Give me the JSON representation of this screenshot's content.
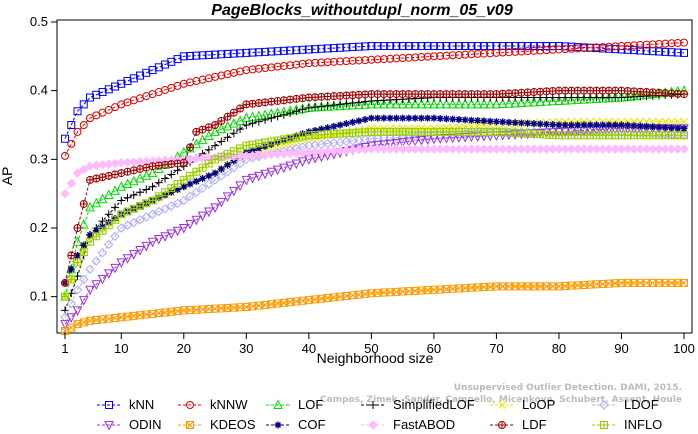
{
  "chart_data": {
    "type": "line",
    "title": "PageBlocks_withoutdupl_norm_05_v09",
    "xlabel": "Neighborhood size",
    "ylabel": "AP",
    "xlim": [
      1,
      100
    ],
    "ylim": [
      0.05,
      0.5
    ],
    "xticks": [
      1,
      10,
      20,
      30,
      40,
      50,
      60,
      70,
      80,
      90,
      100
    ],
    "yticks": [
      0.1,
      0.2,
      0.3,
      0.4,
      0.5
    ],
    "legend_position": "bottom",
    "watermark": [
      "Campos, Zimek, Sander, Campello, Micenkova, Schubert, Assent, Houle",
      "Unsupervised Outlier Detection. DAMI, 2015."
    ],
    "series": [
      {
        "name": "kNN",
        "color": "#0000ff",
        "marker": "square",
        "points": [
          [
            1,
            0.33
          ],
          [
            3,
            0.37
          ],
          [
            5,
            0.39
          ],
          [
            10,
            0.41
          ],
          [
            15,
            0.43
          ],
          [
            20,
            0.45
          ],
          [
            30,
            0.455
          ],
          [
            40,
            0.46
          ],
          [
            50,
            0.465
          ],
          [
            60,
            0.465
          ],
          [
            70,
            0.465
          ],
          [
            80,
            0.465
          ],
          [
            90,
            0.46
          ],
          [
            100,
            0.455
          ]
        ]
      },
      {
        "name": "kNNW",
        "color": "#e00000",
        "marker": "circle",
        "points": [
          [
            1,
            0.305
          ],
          [
            3,
            0.34
          ],
          [
            5,
            0.36
          ],
          [
            10,
            0.38
          ],
          [
            15,
            0.395
          ],
          [
            20,
            0.41
          ],
          [
            30,
            0.43
          ],
          [
            40,
            0.44
          ],
          [
            50,
            0.445
          ],
          [
            60,
            0.45
          ],
          [
            70,
            0.455
          ],
          [
            80,
            0.46
          ],
          [
            90,
            0.465
          ],
          [
            100,
            0.47
          ]
        ]
      },
      {
        "name": "LOF",
        "color": "#00dd00",
        "marker": "triangle",
        "points": [
          [
            1,
            0.1
          ],
          [
            3,
            0.18
          ],
          [
            5,
            0.23
          ],
          [
            10,
            0.26
          ],
          [
            15,
            0.28
          ],
          [
            20,
            0.31
          ],
          [
            25,
            0.34
          ],
          [
            30,
            0.36
          ],
          [
            40,
            0.375
          ],
          [
            50,
            0.38
          ],
          [
            60,
            0.38
          ],
          [
            70,
            0.38
          ],
          [
            80,
            0.385
          ],
          [
            90,
            0.39
          ],
          [
            100,
            0.4
          ]
        ]
      },
      {
        "name": "SimplifiedLOF",
        "color": "#000000",
        "marker": "plus",
        "points": [
          [
            1,
            0.08
          ],
          [
            3,
            0.13
          ],
          [
            5,
            0.19
          ],
          [
            10,
            0.24
          ],
          [
            15,
            0.26
          ],
          [
            20,
            0.29
          ],
          [
            25,
            0.32
          ],
          [
            30,
            0.35
          ],
          [
            40,
            0.375
          ],
          [
            50,
            0.385
          ],
          [
            60,
            0.39
          ],
          [
            70,
            0.39
          ],
          [
            80,
            0.39
          ],
          [
            90,
            0.39
          ],
          [
            100,
            0.395
          ]
        ]
      },
      {
        "name": "LoOP",
        "color": "#e8e800",
        "marker": "x",
        "points": [
          [
            1,
            0.1
          ],
          [
            3,
            0.15
          ],
          [
            5,
            0.19
          ],
          [
            10,
            0.22
          ],
          [
            15,
            0.24
          ],
          [
            20,
            0.26
          ],
          [
            25,
            0.28
          ],
          [
            30,
            0.31
          ],
          [
            40,
            0.33
          ],
          [
            50,
            0.345
          ],
          [
            60,
            0.345
          ],
          [
            70,
            0.35
          ],
          [
            80,
            0.355
          ],
          [
            90,
            0.355
          ],
          [
            100,
            0.355
          ]
        ]
      },
      {
        "name": "LDOF",
        "color": "#aaaaff",
        "marker": "diamond",
        "points": [
          [
            1,
            0.07
          ],
          [
            3,
            0.11
          ],
          [
            5,
            0.14
          ],
          [
            10,
            0.2
          ],
          [
            15,
            0.22
          ],
          [
            20,
            0.24
          ],
          [
            25,
            0.27
          ],
          [
            30,
            0.3
          ],
          [
            40,
            0.32
          ],
          [
            50,
            0.33
          ],
          [
            60,
            0.335
          ],
          [
            70,
            0.34
          ],
          [
            80,
            0.34
          ],
          [
            90,
            0.34
          ],
          [
            100,
            0.335
          ]
        ]
      },
      {
        "name": "ODIN",
        "color": "#9933dd",
        "marker": "triangle-down",
        "points": [
          [
            1,
            0.06
          ],
          [
            3,
            0.08
          ],
          [
            5,
            0.11
          ],
          [
            10,
            0.15
          ],
          [
            15,
            0.18
          ],
          [
            20,
            0.2
          ],
          [
            25,
            0.23
          ],
          [
            30,
            0.27
          ],
          [
            40,
            0.3
          ],
          [
            50,
            0.32
          ],
          [
            60,
            0.33
          ],
          [
            70,
            0.335
          ],
          [
            80,
            0.34
          ],
          [
            90,
            0.345
          ],
          [
            100,
            0.345
          ]
        ]
      },
      {
        "name": "KDEOS",
        "color": "#ff9900",
        "marker": "square-x",
        "points": [
          [
            1,
            0.05
          ],
          [
            3,
            0.06
          ],
          [
            5,
            0.065
          ],
          [
            10,
            0.07
          ],
          [
            20,
            0.08
          ],
          [
            30,
            0.085
          ],
          [
            40,
            0.095
          ],
          [
            50,
            0.105
          ],
          [
            60,
            0.11
          ],
          [
            70,
            0.115
          ],
          [
            80,
            0.115
          ],
          [
            90,
            0.12
          ],
          [
            100,
            0.12
          ]
        ]
      },
      {
        "name": "COF",
        "color": "#000080",
        "marker": "star",
        "points": [
          [
            1,
            0.12
          ],
          [
            3,
            0.16
          ],
          [
            5,
            0.19
          ],
          [
            10,
            0.22
          ],
          [
            15,
            0.24
          ],
          [
            20,
            0.26
          ],
          [
            25,
            0.28
          ],
          [
            30,
            0.31
          ],
          [
            40,
            0.34
          ],
          [
            50,
            0.36
          ],
          [
            60,
            0.36
          ],
          [
            70,
            0.355
          ],
          [
            80,
            0.35
          ],
          [
            90,
            0.35
          ],
          [
            100,
            0.345
          ]
        ]
      },
      {
        "name": "FastABOD",
        "color": "#ffbbff",
        "marker": "diamond-filled",
        "points": [
          [
            1,
            0.25
          ],
          [
            3,
            0.28
          ],
          [
            5,
            0.29
          ],
          [
            10,
            0.295
          ],
          [
            20,
            0.3
          ],
          [
            30,
            0.305
          ],
          [
            40,
            0.31
          ],
          [
            50,
            0.315
          ],
          [
            60,
            0.315
          ],
          [
            70,
            0.315
          ],
          [
            80,
            0.315
          ],
          [
            90,
            0.315
          ],
          [
            100,
            0.315
          ]
        ]
      },
      {
        "name": "LDF",
        "color": "#a00000",
        "marker": "circle-plus",
        "points": [
          [
            1,
            0.12
          ],
          [
            3,
            0.2
          ],
          [
            5,
            0.27
          ],
          [
            10,
            0.28
          ],
          [
            15,
            0.29
          ],
          [
            20,
            0.295
          ],
          [
            22,
            0.34
          ],
          [
            25,
            0.35
          ],
          [
            30,
            0.38
          ],
          [
            40,
            0.39
          ],
          [
            50,
            0.395
          ],
          [
            60,
            0.395
          ],
          [
            70,
            0.395
          ],
          [
            80,
            0.4
          ],
          [
            90,
            0.4
          ],
          [
            100,
            0.395
          ]
        ]
      },
      {
        "name": "INFLO",
        "color": "#99cc00",
        "marker": "square-cross",
        "points": [
          [
            1,
            0.1
          ],
          [
            3,
            0.15
          ],
          [
            5,
            0.18
          ],
          [
            10,
            0.22
          ],
          [
            15,
            0.24
          ],
          [
            20,
            0.27
          ],
          [
            25,
            0.3
          ],
          [
            30,
            0.32
          ],
          [
            40,
            0.335
          ],
          [
            50,
            0.34
          ],
          [
            60,
            0.34
          ],
          [
            70,
            0.34
          ],
          [
            80,
            0.335
          ],
          [
            90,
            0.335
          ],
          [
            100,
            0.335
          ]
        ]
      }
    ]
  }
}
